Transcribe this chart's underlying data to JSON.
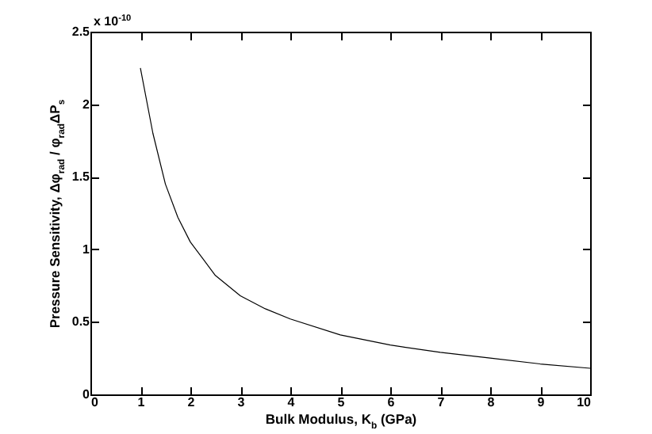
{
  "chart_data": {
    "type": "line",
    "xlabel": "Bulk Modulus, K$_{b}$ (GPa)",
    "ylabel": "Pressure Sensitivity, Δφ$_{rad}$ / φ$_{rad}$ΔP$_{s}$",
    "annotations": [
      "x 10$^{-10}$"
    ],
    "x": [
      1,
      1.25,
      1.5,
      1.75,
      2,
      2.5,
      3,
      3.5,
      4,
      5,
      6,
      7,
      8,
      9,
      10
    ],
    "series": [
      {
        "color": "#000000",
        "values": [
          2.25,
          1.8,
          1.45,
          1.22,
          1.05,
          0.82,
          0.68,
          0.59,
          0.52,
          0.41,
          0.34,
          0.29,
          0.25,
          0.21,
          0.18
        ]
      }
    ],
    "xlim": [
      0,
      10
    ],
    "xticks": [
      0,
      1,
      2,
      3,
      4,
      5,
      6,
      7,
      8,
      9,
      10
    ],
    "ylim": [
      0,
      2.5
    ],
    "yticks": [
      0,
      0.5,
      1,
      1.5,
      2,
      2.5
    ],
    "grid": false,
    "marker": "none",
    "line_style": "solid"
  }
}
